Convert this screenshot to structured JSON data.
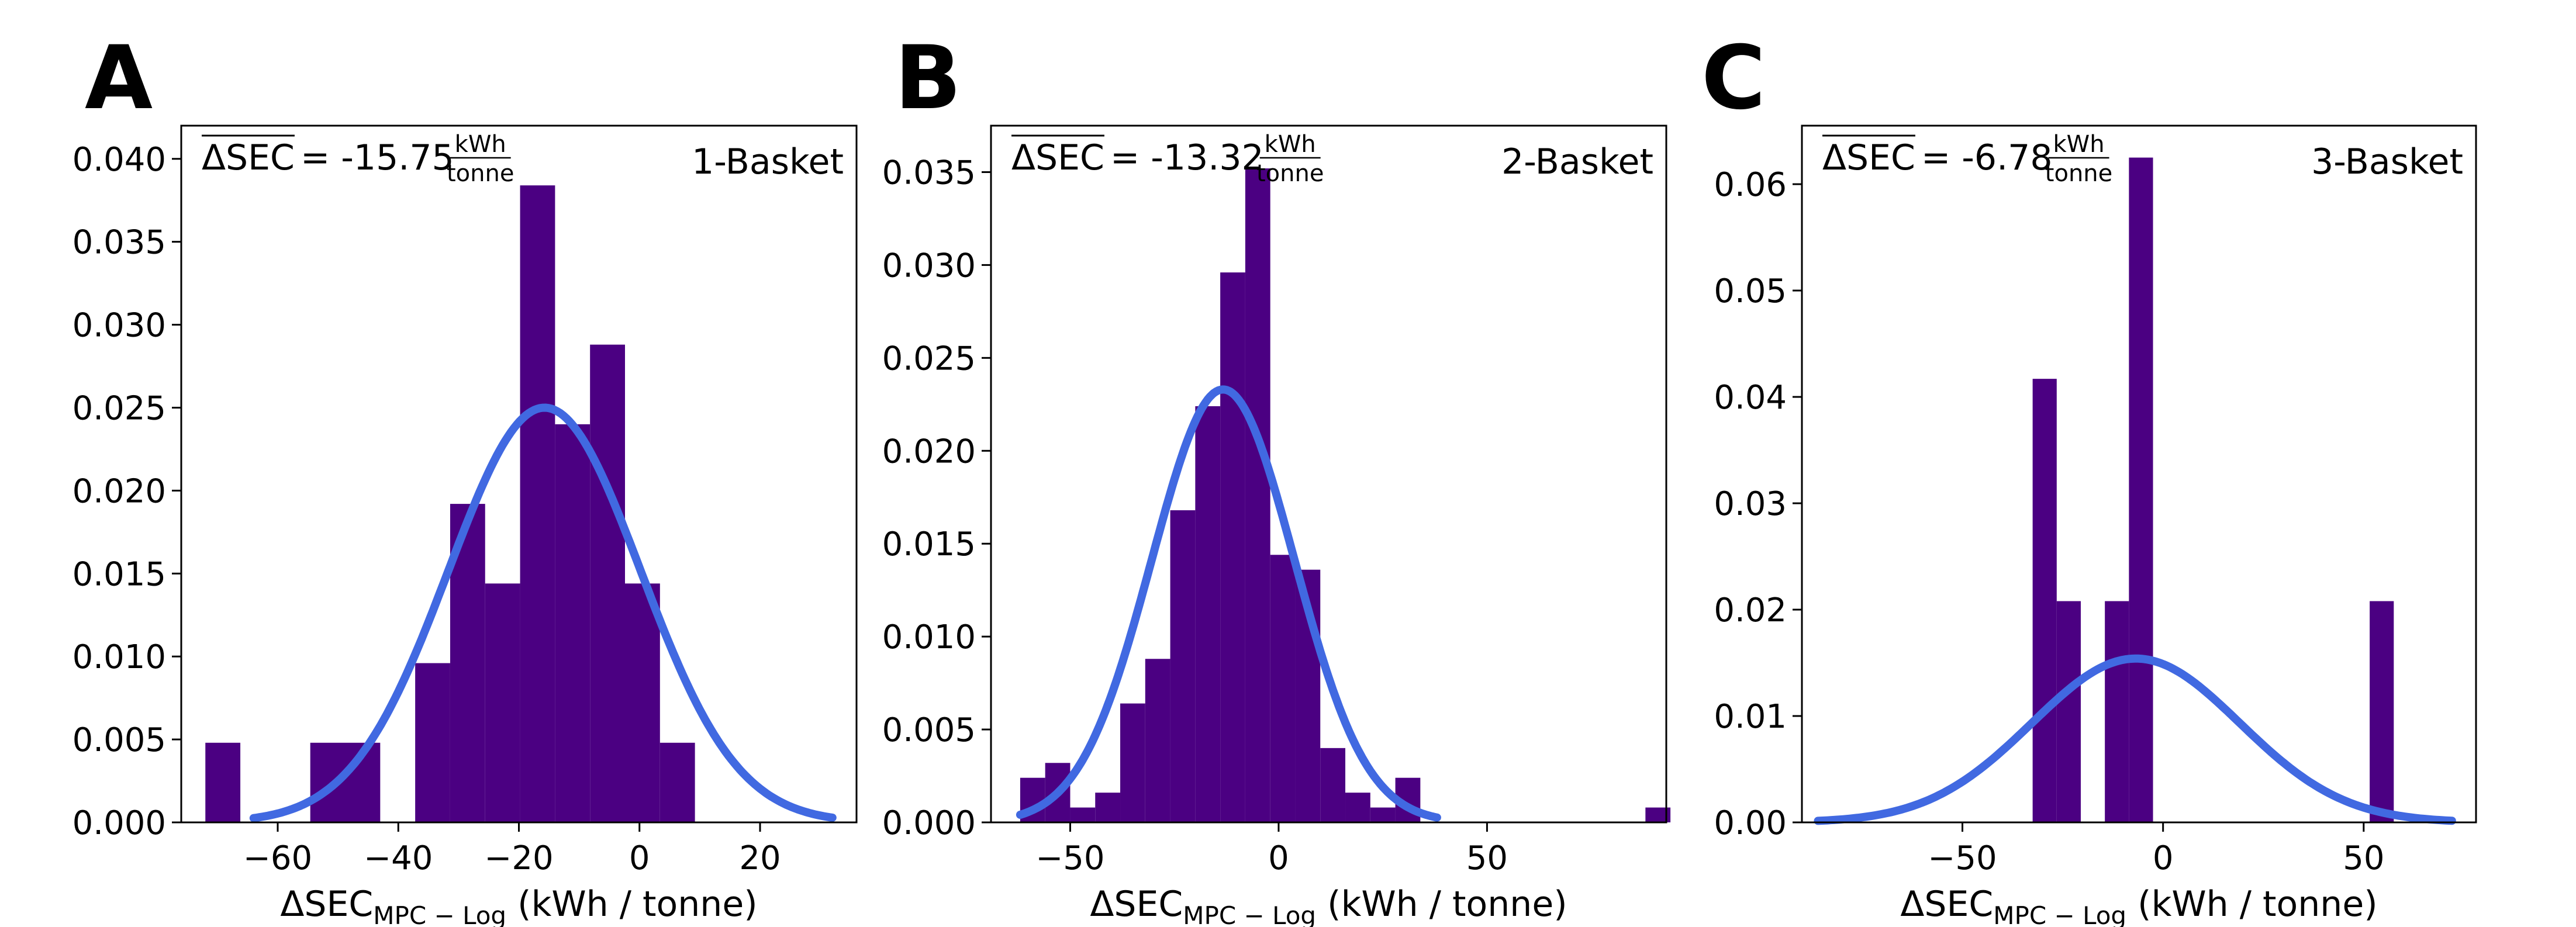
{
  "chart_data": [
    {
      "type": "bar",
      "panel_label": "A",
      "basket_label": "1-Basket",
      "annotation": {
        "symbol": "ΔSEC",
        "value": "= -15.75",
        "unit_num": "kWh",
        "unit_den": "tonne"
      },
      "xlabel": {
        "main": "ΔSEC",
        "sub": "MPC − Log",
        "tail": " (kWh / tonne)"
      },
      "xlim": [
        -76,
        36
      ],
      "ylim": [
        0,
        0.042
      ],
      "xticks": [
        -60,
        -40,
        -20,
        0,
        20
      ],
      "xtick_labels": [
        "−60",
        "−40",
        "−20",
        "0",
        "20"
      ],
      "yticks": [
        0,
        0.005,
        0.01,
        0.015,
        0.02,
        0.025,
        0.03,
        0.035,
        0.04
      ],
      "ytick_labels": [
        "0.000",
        "0.005",
        "0.010",
        "0.015",
        "0.020",
        "0.025",
        "0.030",
        "0.035",
        "0.040"
      ],
      "bins": [
        -72,
        -66.2,
        -60.4,
        -54.6,
        -48.8,
        -43,
        -37.2,
        -31.4,
        -25.6,
        -19.8,
        -14,
        -8.2,
        -2.4,
        3.4,
        9.2
      ],
      "bin_width": 5.8,
      "values": [
        0.0048,
        0,
        0,
        0.0048,
        0.0048,
        0,
        0.0096,
        0.0192,
        0.0144,
        0.0384,
        0.024,
        0.0288,
        0.0144,
        0.0048,
        0
      ],
      "fit": {
        "mean": -15.75,
        "peak": 0.025,
        "x_range": [
          -64,
          32
        ]
      }
    },
    {
      "type": "bar",
      "panel_label": "B",
      "basket_label": "2-Basket",
      "annotation": {
        "symbol": "ΔSEC",
        "value": "= -13.32",
        "unit_num": "kWh",
        "unit_den": "tonne"
      },
      "xlabel": {
        "main": "ΔSEC",
        "sub": "MPC − Log",
        "tail": " (kWh / tonne)"
      },
      "xlim": [
        -69,
        93
      ],
      "ylim": [
        0,
        0.0375
      ],
      "xticks": [
        -50,
        0,
        50
      ],
      "xtick_labels": [
        "−50",
        "0",
        "50"
      ],
      "yticks": [
        0,
        0.005,
        0.01,
        0.015,
        0.02,
        0.025,
        0.03,
        0.035
      ],
      "ytick_labels": [
        "0.000",
        "0.005",
        "0.010",
        "0.015",
        "0.020",
        "0.025",
        "0.030",
        "0.035"
      ],
      "bins": [
        -62,
        -56,
        -50,
        -44,
        -38,
        -32,
        -26,
        -20,
        -14,
        -8,
        -2,
        4,
        10,
        16,
        22,
        28,
        34,
        40,
        46,
        52,
        58,
        64,
        70,
        76,
        82,
        88
      ],
      "bin_width": 6,
      "values": [
        0.0024,
        0.0032,
        0.0008,
        0.0016,
        0.0064,
        0.0088,
        0.0168,
        0.0224,
        0.0296,
        0.0352,
        0.0144,
        0.0136,
        0.004,
        0.0016,
        0.0008,
        0.0024,
        0,
        0,
        0,
        0,
        0,
        0,
        0,
        0,
        0,
        0.0008
      ],
      "fit": {
        "mean": -13.32,
        "peak": 0.0233,
        "x_range": [
          -62,
          38
        ]
      }
    },
    {
      "type": "bar",
      "panel_label": "C",
      "basket_label": "3-Basket",
      "annotation": {
        "symbol": "ΔSEC",
        "value": "= -6.78",
        "unit_num": "kWh",
        "unit_den": "tonne"
      },
      "xlabel": {
        "main": "ΔSEC",
        "sub": "MPC − Log",
        "tail": " (kWh / tonne)"
      },
      "xlim": [
        -90,
        78
      ],
      "ylim": [
        0,
        0.0655
      ],
      "xticks": [
        -50,
        0,
        50
      ],
      "xtick_labels": [
        "−50",
        "0",
        "50"
      ],
      "yticks": [
        0,
        0.01,
        0.02,
        0.03,
        0.04,
        0.05,
        0.06
      ],
      "ytick_labels": [
        "0.00",
        "0.01",
        "0.02",
        "0.03",
        "0.04",
        "0.05",
        "0.06"
      ],
      "bins": [
        -32.5,
        -26.5,
        -20.5,
        -14.5,
        -8.5,
        -2.5,
        3.5,
        9.5,
        15.5,
        21.5,
        27.5,
        33.5,
        39.5,
        45.5,
        51.5
      ],
      "bin_width": 6,
      "values": [
        0.0417,
        0.0208,
        0,
        0.0208,
        0.0625,
        0,
        0,
        0,
        0,
        0,
        0,
        0,
        0,
        0,
        0.0208
      ],
      "fit": {
        "mean": -6.78,
        "peak": 0.0154,
        "x_range": [
          -86,
          72
        ]
      }
    }
  ]
}
